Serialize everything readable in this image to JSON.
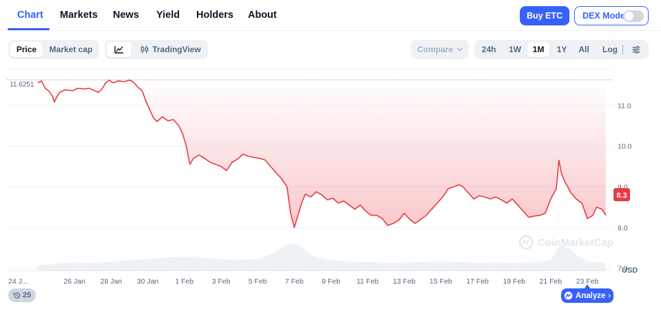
{
  "nav": {
    "tabs": [
      {
        "label": "Chart",
        "active": true
      },
      {
        "label": "Markets",
        "active": false
      },
      {
        "label": "News",
        "active": false
      },
      {
        "label": "Yield",
        "active": false
      },
      {
        "label": "Holders",
        "active": false
      },
      {
        "label": "About",
        "active": false
      }
    ],
    "buy_label": "Buy ETC",
    "dex_label": "DEX Mode",
    "dex_enabled": false
  },
  "toolbar": {
    "metric_tabs": [
      {
        "label": "Price",
        "active": true
      },
      {
        "label": "Market cap",
        "active": false
      }
    ],
    "chart_type_icon": "line-chart-icon",
    "tradingview_label": "TradingView",
    "compare_label": "Compare",
    "ranges": [
      {
        "label": "24h",
        "active": false
      },
      {
        "label": "1W",
        "active": false
      },
      {
        "label": "1M",
        "active": true
      },
      {
        "label": "1Y",
        "active": false
      },
      {
        "label": "All",
        "active": false
      }
    ],
    "log_label": "Log",
    "settings_icon": "sliders-icon"
  },
  "chart_data": {
    "type": "area",
    "color": "#ea3943",
    "y_ticks": [
      7.0,
      8.0,
      9.0,
      10.0,
      11.0
    ],
    "y_tick_labels": [
      "7.0",
      "8.0",
      "9.0",
      "10.0",
      "11.0"
    ],
    "ylim": [
      6.0,
      11.9
    ],
    "y_unit": "USD",
    "x_tick_labels": [
      "24 J...",
      "26 Jan",
      "28 Jan",
      "30 Jan",
      "1 Feb",
      "3 Feb",
      "5 Feb",
      "7 Feb",
      "9 Feb",
      "11 Feb",
      "13 Feb",
      "15 Feb",
      "17 Feb",
      "19 Feb",
      "21 Feb",
      "23 Feb"
    ],
    "high_label": "11.6251",
    "high_value": 11.6251,
    "current_label": "8.3",
    "current_value": 8.3,
    "x_range_days": [
      0,
      31.2
    ],
    "x_tick_days": [
      0,
      2,
      4,
      6,
      8,
      10,
      12,
      14,
      16,
      18,
      20,
      22,
      24,
      26,
      28,
      30
    ],
    "price_series": [
      [
        0.0,
        11.55
      ],
      [
        0.2,
        11.6
      ],
      [
        0.4,
        11.42
      ],
      [
        0.6,
        11.35
      ],
      [
        0.8,
        11.22
      ],
      [
        0.9,
        11.08
      ],
      [
        1.05,
        11.22
      ],
      [
        1.2,
        11.32
      ],
      [
        1.5,
        11.38
      ],
      [
        1.9,
        11.36
      ],
      [
        2.2,
        11.42
      ],
      [
        2.5,
        11.4
      ],
      [
        2.8,
        11.42
      ],
      [
        3.0,
        11.38
      ],
      [
        3.3,
        11.32
      ],
      [
        3.5,
        11.4
      ],
      [
        3.7,
        11.55
      ],
      [
        3.9,
        11.62
      ],
      [
        4.1,
        11.55
      ],
      [
        4.4,
        11.6
      ],
      [
        4.7,
        11.58
      ],
      [
        5.0,
        11.62
      ],
      [
        5.2,
        11.58
      ],
      [
        5.45,
        11.45
      ],
      [
        5.7,
        11.35
      ],
      [
        5.9,
        11.1
      ],
      [
        6.1,
        10.9
      ],
      [
        6.3,
        10.7
      ],
      [
        6.5,
        10.6
      ],
      [
        6.8,
        10.72
      ],
      [
        7.1,
        10.62
      ],
      [
        7.4,
        10.65
      ],
      [
        7.7,
        10.5
      ],
      [
        7.9,
        10.3
      ],
      [
        8.1,
        10.0
      ],
      [
        8.3,
        9.55
      ],
      [
        8.5,
        9.7
      ],
      [
        8.8,
        9.78
      ],
      [
        9.1,
        9.7
      ],
      [
        9.4,
        9.6
      ],
      [
        9.7,
        9.55
      ],
      [
        10.0,
        9.5
      ],
      [
        10.3,
        9.4
      ],
      [
        10.6,
        9.6
      ],
      [
        10.9,
        9.68
      ],
      [
        11.2,
        9.8
      ],
      [
        11.5,
        9.75
      ],
      [
        11.8,
        9.72
      ],
      [
        12.1,
        9.7
      ],
      [
        12.4,
        9.66
      ],
      [
        12.7,
        9.5
      ],
      [
        13.0,
        9.35
      ],
      [
        13.3,
        9.2
      ],
      [
        13.6,
        9.0
      ],
      [
        13.8,
        8.35
      ],
      [
        14.0,
        8.0
      ],
      [
        14.2,
        8.3
      ],
      [
        14.4,
        8.6
      ],
      [
        14.6,
        8.82
      ],
      [
        14.9,
        8.75
      ],
      [
        15.2,
        8.88
      ],
      [
        15.5,
        8.8
      ],
      [
        15.8,
        8.68
      ],
      [
        16.1,
        8.72
      ],
      [
        16.4,
        8.6
      ],
      [
        16.7,
        8.65
      ],
      [
        17.0,
        8.55
      ],
      [
        17.3,
        8.45
      ],
      [
        17.6,
        8.55
      ],
      [
        17.9,
        8.4
      ],
      [
        18.2,
        8.3
      ],
      [
        18.5,
        8.3
      ],
      [
        18.8,
        8.22
      ],
      [
        19.1,
        8.05
      ],
      [
        19.4,
        8.1
      ],
      [
        19.7,
        8.18
      ],
      [
        20.0,
        8.35
      ],
      [
        20.3,
        8.2
      ],
      [
        20.6,
        8.1
      ],
      [
        20.9,
        8.2
      ],
      [
        21.2,
        8.3
      ],
      [
        21.5,
        8.45
      ],
      [
        21.8,
        8.6
      ],
      [
        22.1,
        8.75
      ],
      [
        22.4,
        8.95
      ],
      [
        22.7,
        9.0
      ],
      [
        23.0,
        9.05
      ],
      [
        23.2,
        9.0
      ],
      [
        23.5,
        8.85
      ],
      [
        23.8,
        8.7
      ],
      [
        24.1,
        8.78
      ],
      [
        24.4,
        8.75
      ],
      [
        24.7,
        8.7
      ],
      [
        25.0,
        8.75
      ],
      [
        25.3,
        8.68
      ],
      [
        25.6,
        8.6
      ],
      [
        25.9,
        8.7
      ],
      [
        26.2,
        8.55
      ],
      [
        26.5,
        8.4
      ],
      [
        26.8,
        8.25
      ],
      [
        27.1,
        8.28
      ],
      [
        27.4,
        8.3
      ],
      [
        27.7,
        8.35
      ],
      [
        28.0,
        8.7
      ],
      [
        28.3,
        8.95
      ],
      [
        28.45,
        9.65
      ],
      [
        28.6,
        9.3
      ],
      [
        28.8,
        9.1
      ],
      [
        29.1,
        8.85
      ],
      [
        29.4,
        8.7
      ],
      [
        29.7,
        8.6
      ],
      [
        30.0,
        8.22
      ],
      [
        30.3,
        8.3
      ],
      [
        30.5,
        8.5
      ],
      [
        30.8,
        8.45
      ],
      [
        31.0,
        8.3
      ]
    ],
    "volume_series": [
      [
        0.0,
        0.22
      ],
      [
        1.0,
        0.28
      ],
      [
        2.0,
        0.32
      ],
      [
        3.0,
        0.3
      ],
      [
        4.0,
        0.35
      ],
      [
        5.0,
        0.4
      ],
      [
        6.0,
        0.45
      ],
      [
        7.0,
        0.5
      ],
      [
        8.0,
        0.55
      ],
      [
        9.0,
        0.48
      ],
      [
        10.0,
        0.45
      ],
      [
        11.0,
        0.42
      ],
      [
        12.0,
        0.45
      ],
      [
        12.8,
        0.65
      ],
      [
        13.5,
        0.95
      ],
      [
        14.0,
        1.0
      ],
      [
        14.5,
        0.85
      ],
      [
        15.0,
        0.55
      ],
      [
        16.0,
        0.4
      ],
      [
        17.0,
        0.36
      ],
      [
        18.0,
        0.34
      ],
      [
        19.0,
        0.3
      ],
      [
        20.0,
        0.32
      ],
      [
        21.0,
        0.34
      ],
      [
        22.0,
        0.36
      ],
      [
        23.0,
        0.34
      ],
      [
        24.0,
        0.3
      ],
      [
        25.0,
        0.32
      ],
      [
        26.0,
        0.3
      ],
      [
        27.0,
        0.32
      ],
      [
        28.0,
        0.4
      ],
      [
        28.5,
        0.95
      ],
      [
        29.0,
        0.85
      ],
      [
        29.5,
        0.55
      ],
      [
        30.0,
        0.35
      ],
      [
        31.0,
        0.3
      ]
    ],
    "watermark": "CoinMarketCap",
    "grid": true
  },
  "footer": {
    "history_count": "25",
    "analyze_label": "Analyze"
  }
}
